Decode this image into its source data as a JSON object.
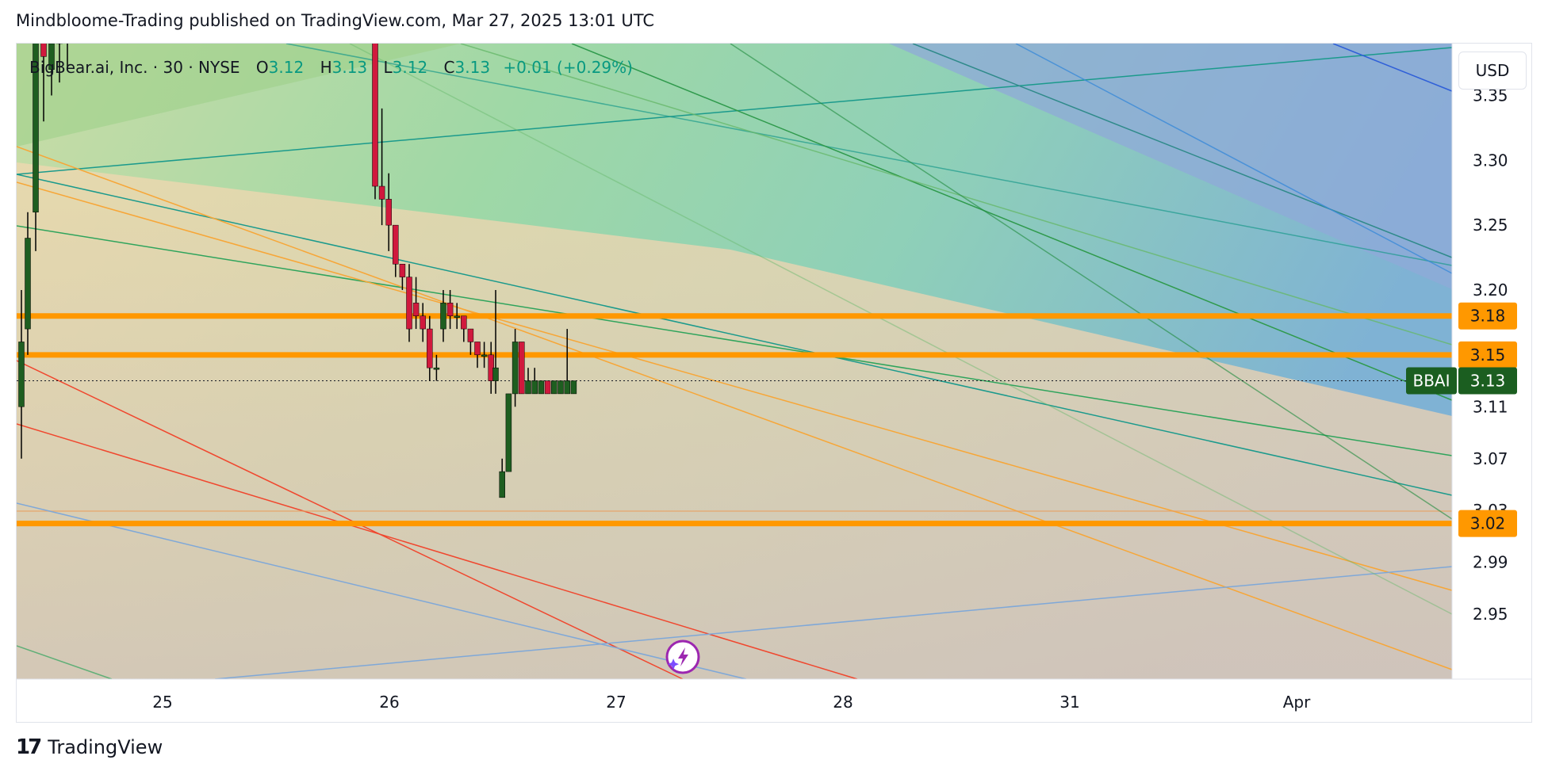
{
  "header": {
    "published": "Mindbloome-Trading published on TradingView.com, Mar 27, 2025 13:01 UTC"
  },
  "legend": {
    "symbol": "BigBear.ai, Inc. · 30 · NYSE",
    "open_label": "O",
    "open": "3.12",
    "high_label": "H",
    "high": "3.13",
    "low_label": "L",
    "low": "3.12",
    "close_label": "C",
    "close": "3.13",
    "change": "+0.01 (+0.29%)"
  },
  "currency": "USD",
  "footer": {
    "logo_mark": "17",
    "logo_text": "TradingView"
  },
  "colors": {
    "up": "#1e5e20",
    "down": "#d0193d",
    "level": "#ff9800",
    "last_price": "#1b5e20",
    "axis_text": "#131722"
  },
  "chart_data": {
    "type": "candlestick",
    "symbol": "BBAI",
    "interval": "30",
    "ylim": [
      2.9,
      3.39
    ],
    "y_ticks": [
      "3.35",
      "3.30",
      "3.25",
      "3.20",
      "3.11",
      "3.07",
      "3.03",
      "2.99",
      "2.95"
    ],
    "x_ticks": [
      "25",
      "26",
      "27",
      "28",
      "31",
      "Apr"
    ],
    "horizontal_levels": [
      3.18,
      3.15,
      3.02
    ],
    "last_price": {
      "label": "BBAI",
      "value": 3.13
    },
    "candles": [
      {
        "day": "24",
        "o": 3.11,
        "h": 3.2,
        "l": 3.07,
        "c": 3.16
      },
      {
        "day": "24",
        "o": 3.17,
        "h": 3.26,
        "l": 3.15,
        "c": 3.24
      },
      {
        "day": "24",
        "o": 3.26,
        "h": 3.42,
        "l": 3.23,
        "c": 3.4
      },
      {
        "day": "24",
        "o": 3.4,
        "h": 3.41,
        "l": 3.33,
        "c": 3.38
      },
      {
        "day": "24",
        "o": 3.37,
        "h": 3.4,
        "l": 3.35,
        "c": 3.39
      },
      {
        "day": "24",
        "o": 3.39,
        "h": 3.42,
        "l": 3.36,
        "c": 3.41
      },
      {
        "day": "24",
        "o": 3.4,
        "h": 3.42,
        "l": 3.37,
        "c": 3.4
      },
      {
        "day": "26",
        "o": 3.43,
        "h": 3.44,
        "l": 3.27,
        "c": 3.28
      },
      {
        "day": "26",
        "o": 3.28,
        "h": 3.34,
        "l": 3.25,
        "c": 3.27
      },
      {
        "day": "26",
        "o": 3.27,
        "h": 3.29,
        "l": 3.23,
        "c": 3.25
      },
      {
        "day": "26",
        "o": 3.25,
        "h": 3.25,
        "l": 3.21,
        "c": 3.22
      },
      {
        "day": "26",
        "o": 3.22,
        "h": 3.22,
        "l": 3.2,
        "c": 3.21
      },
      {
        "day": "26",
        "o": 3.21,
        "h": 3.22,
        "l": 3.16,
        "c": 3.17
      },
      {
        "day": "26",
        "o": 3.19,
        "h": 3.21,
        "l": 3.17,
        "c": 3.18
      },
      {
        "day": "26",
        "o": 3.18,
        "h": 3.19,
        "l": 3.16,
        "c": 3.17
      },
      {
        "day": "26",
        "o": 3.17,
        "h": 3.18,
        "l": 3.13,
        "c": 3.14
      },
      {
        "day": "26",
        "o": 3.14,
        "h": 3.15,
        "l": 3.13,
        "c": 3.14
      },
      {
        "day": "26",
        "o": 3.17,
        "h": 3.2,
        "l": 3.16,
        "c": 3.19
      },
      {
        "day": "26",
        "o": 3.19,
        "h": 3.2,
        "l": 3.17,
        "c": 3.18
      },
      {
        "day": "26",
        "o": 3.18,
        "h": 3.19,
        "l": 3.17,
        "c": 3.18
      },
      {
        "day": "26",
        "o": 3.18,
        "h": 3.18,
        "l": 3.16,
        "c": 3.17
      },
      {
        "day": "26",
        "o": 3.17,
        "h": 3.17,
        "l": 3.15,
        "c": 3.16
      },
      {
        "day": "26",
        "o": 3.16,
        "h": 3.16,
        "l": 3.14,
        "c": 3.15
      },
      {
        "day": "26",
        "o": 3.15,
        "h": 3.16,
        "l": 3.14,
        "c": 3.15
      },
      {
        "day": "26",
        "o": 3.15,
        "h": 3.16,
        "l": 3.12,
        "c": 3.13
      },
      {
        "day": "27",
        "o": 3.13,
        "h": 3.2,
        "l": 3.12,
        "c": 3.14
      },
      {
        "day": "27",
        "o": 3.04,
        "h": 3.07,
        "l": 3.04,
        "c": 3.06
      },
      {
        "day": "27",
        "o": 3.06,
        "h": 3.12,
        "l": 3.06,
        "c": 3.12
      },
      {
        "day": "27",
        "o": 3.12,
        "h": 3.17,
        "l": 3.11,
        "c": 3.16
      },
      {
        "day": "27",
        "o": 3.16,
        "h": 3.16,
        "l": 3.12,
        "c": 3.12
      },
      {
        "day": "27",
        "o": 3.12,
        "h": 3.14,
        "l": 3.12,
        "c": 3.13
      },
      {
        "day": "27",
        "o": 3.12,
        "h": 3.14,
        "l": 3.12,
        "c": 3.13
      },
      {
        "day": "27",
        "o": 3.12,
        "h": 3.13,
        "l": 3.12,
        "c": 3.13
      },
      {
        "day": "27",
        "o": 3.13,
        "h": 3.13,
        "l": 3.12,
        "c": 3.12
      },
      {
        "day": "27",
        "o": 3.12,
        "h": 3.13,
        "l": 3.12,
        "c": 3.13
      },
      {
        "day": "27",
        "o": 3.12,
        "h": 3.13,
        "l": 3.12,
        "c": 3.13
      },
      {
        "day": "27",
        "o": 3.12,
        "h": 3.17,
        "l": 3.12,
        "c": 3.13
      },
      {
        "day": "27",
        "o": 3.12,
        "h": 3.13,
        "l": 3.12,
        "c": 3.13
      }
    ]
  }
}
